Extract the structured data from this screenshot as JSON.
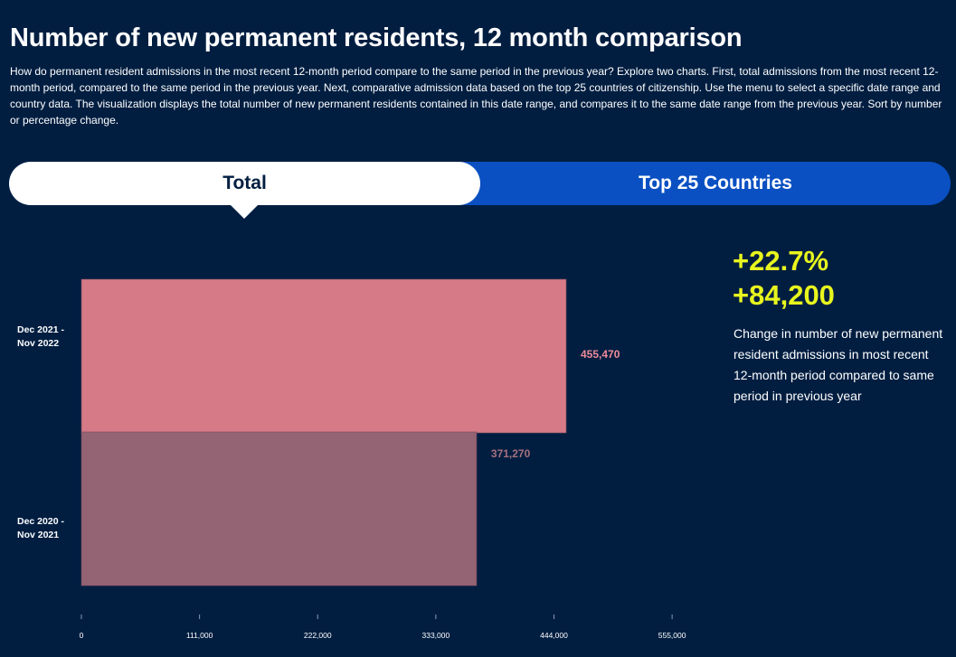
{
  "header": {
    "title": "Number of new permanent residents, 12 month comparison",
    "description": "How do permanent resident admissions in the most recent 12-month period compare to the same period in the previous year? Explore two charts. First, total admissions from the most recent 12-month period, compared to the same period in the previous year. Next, comparative admission data based on the top 25 countries of citizenship. Use the menu to select a specific date range and country data. The visualization displays the total number of new permanent residents contained in this date range, and compares it to the same date range from the previous year. Sort by number or percentage change."
  },
  "tabs": {
    "total_label": "Total",
    "top25_label": "Top 25 Countries",
    "active": "Total"
  },
  "kpi": {
    "percent_change": "+22.7%",
    "absolute_change": "+84,200",
    "caption": "Change in number of new permanent resident admissions in most recent 12-month period compared to same period in previous year"
  },
  "colors": {
    "background": "#011e41",
    "tab_active": "#ffffff",
    "tab_inactive": "#0a50c2",
    "kpi": "#e8f51e",
    "current_bar": "#d67a87",
    "previous_bar": "#956474"
  },
  "chart_data": {
    "type": "bar",
    "orientation": "horizontal",
    "categories": [
      [
        "Dec 2021 -",
        "Nov 2022"
      ],
      [
        "Dec 2020 -",
        "Nov 2021"
      ]
    ],
    "values": [
      455470,
      371270
    ],
    "value_labels": [
      "455,470",
      "371,270"
    ],
    "bar_colors": [
      "#d67a87",
      "#956474"
    ],
    "label_colors": [
      "#f08a98",
      "#a6717f"
    ],
    "xlim": [
      0,
      555000
    ],
    "xticks": [
      0,
      111000,
      222000,
      333000,
      444000,
      555000
    ],
    "xtick_labels": [
      "0",
      "111,000",
      "222,000",
      "333,000",
      "444,000",
      "555,000"
    ],
    "grid": false
  }
}
